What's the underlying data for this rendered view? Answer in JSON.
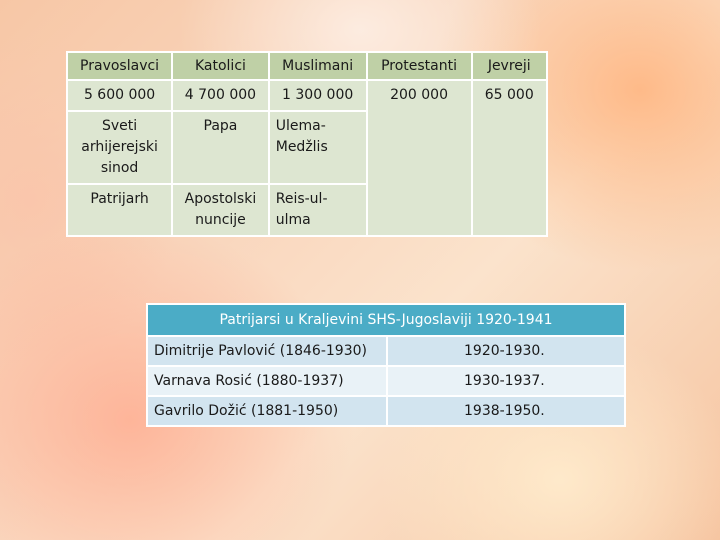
{
  "religion_table": {
    "headers": [
      "Pravoslavci",
      "Katolici",
      "Muslimani",
      "Protestanti",
      "Jevreji"
    ],
    "numbers": [
      "5 600 000",
      "4 700 000",
      "1 300 000",
      "200 000",
      "65 000"
    ],
    "institutions": [
      "Sveti arhijerejski sinod",
      "Papa",
      "Ulema-Medžlis",
      "",
      ""
    ],
    "leaders": [
      "Patrijarh",
      "Apostolski nuncije",
      "Reis-ul-ulma",
      "",
      ""
    ]
  },
  "patriarch_table": {
    "title": "Patrijarsi u Kraljevini SHS-Jugoslaviji 1920-1941",
    "rows": [
      {
        "name": "Dimitrije Pavlović (1846-1930)",
        "years": "1920-1930."
      },
      {
        "name": "Varnava Rosić (1880-1937)",
        "years": "1930-1937."
      },
      {
        "name": "Gavrilo Dožić (1881-1950)",
        "years": "1938-1950."
      }
    ]
  },
  "colors": {
    "religion_header": "#bfd0a6",
    "religion_cell": "#dde6d1",
    "patriarch_header": "#4bacc6",
    "patriarch_row_dark": "#d2e4ef",
    "patriarch_row_light": "#e9f2f7"
  }
}
